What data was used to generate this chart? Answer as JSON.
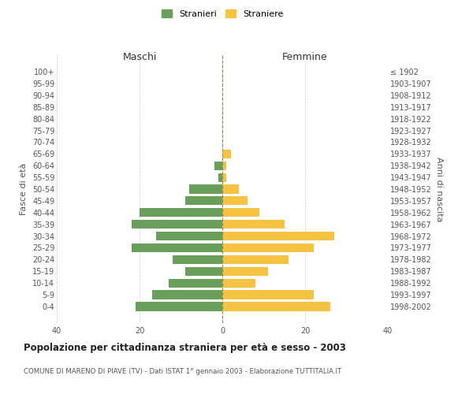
{
  "age_groups": [
    "100+",
    "95-99",
    "90-94",
    "85-89",
    "80-84",
    "75-79",
    "70-74",
    "65-69",
    "60-64",
    "55-59",
    "50-54",
    "45-49",
    "40-44",
    "35-39",
    "30-34",
    "25-29",
    "20-24",
    "15-19",
    "10-14",
    "5-9",
    "0-4"
  ],
  "birth_years": [
    "≤ 1902",
    "1903-1907",
    "1908-1912",
    "1913-1917",
    "1918-1922",
    "1923-1927",
    "1928-1932",
    "1933-1937",
    "1938-1942",
    "1943-1947",
    "1948-1952",
    "1953-1957",
    "1958-1962",
    "1963-1967",
    "1968-1972",
    "1973-1977",
    "1978-1982",
    "1983-1987",
    "1988-1992",
    "1993-1997",
    "1998-2002"
  ],
  "maschi": [
    0,
    0,
    0,
    0,
    0,
    0,
    0,
    0,
    2,
    1,
    8,
    9,
    20,
    22,
    16,
    22,
    12,
    9,
    13,
    17,
    21
  ],
  "femmine": [
    0,
    0,
    0,
    0,
    0,
    0,
    0,
    2,
    1,
    1,
    4,
    6,
    9,
    15,
    27,
    22,
    16,
    11,
    8,
    22,
    26
  ],
  "color_maschi": "#6a9e5b",
  "color_femmine": "#f5c242",
  "title_main": "Popolazione per cittadinanza straniera per età e sesso - 2003",
  "title_sub": "COMUNE DI MARENO DI PIAVE (TV) - Dati ISTAT 1° gennaio 2003 - Elaborazione TUTTITALIA.IT",
  "xlabel_left": "Maschi",
  "xlabel_right": "Femmine",
  "ylabel_left": "Fasce di età",
  "ylabel_right": "Anni di nascita",
  "legend_maschi": "Stranieri",
  "legend_femmine": "Straniere",
  "xlim": 40,
  "background_color": "#ffffff",
  "grid_color": "#cccccc",
  "bar_height": 0.75
}
